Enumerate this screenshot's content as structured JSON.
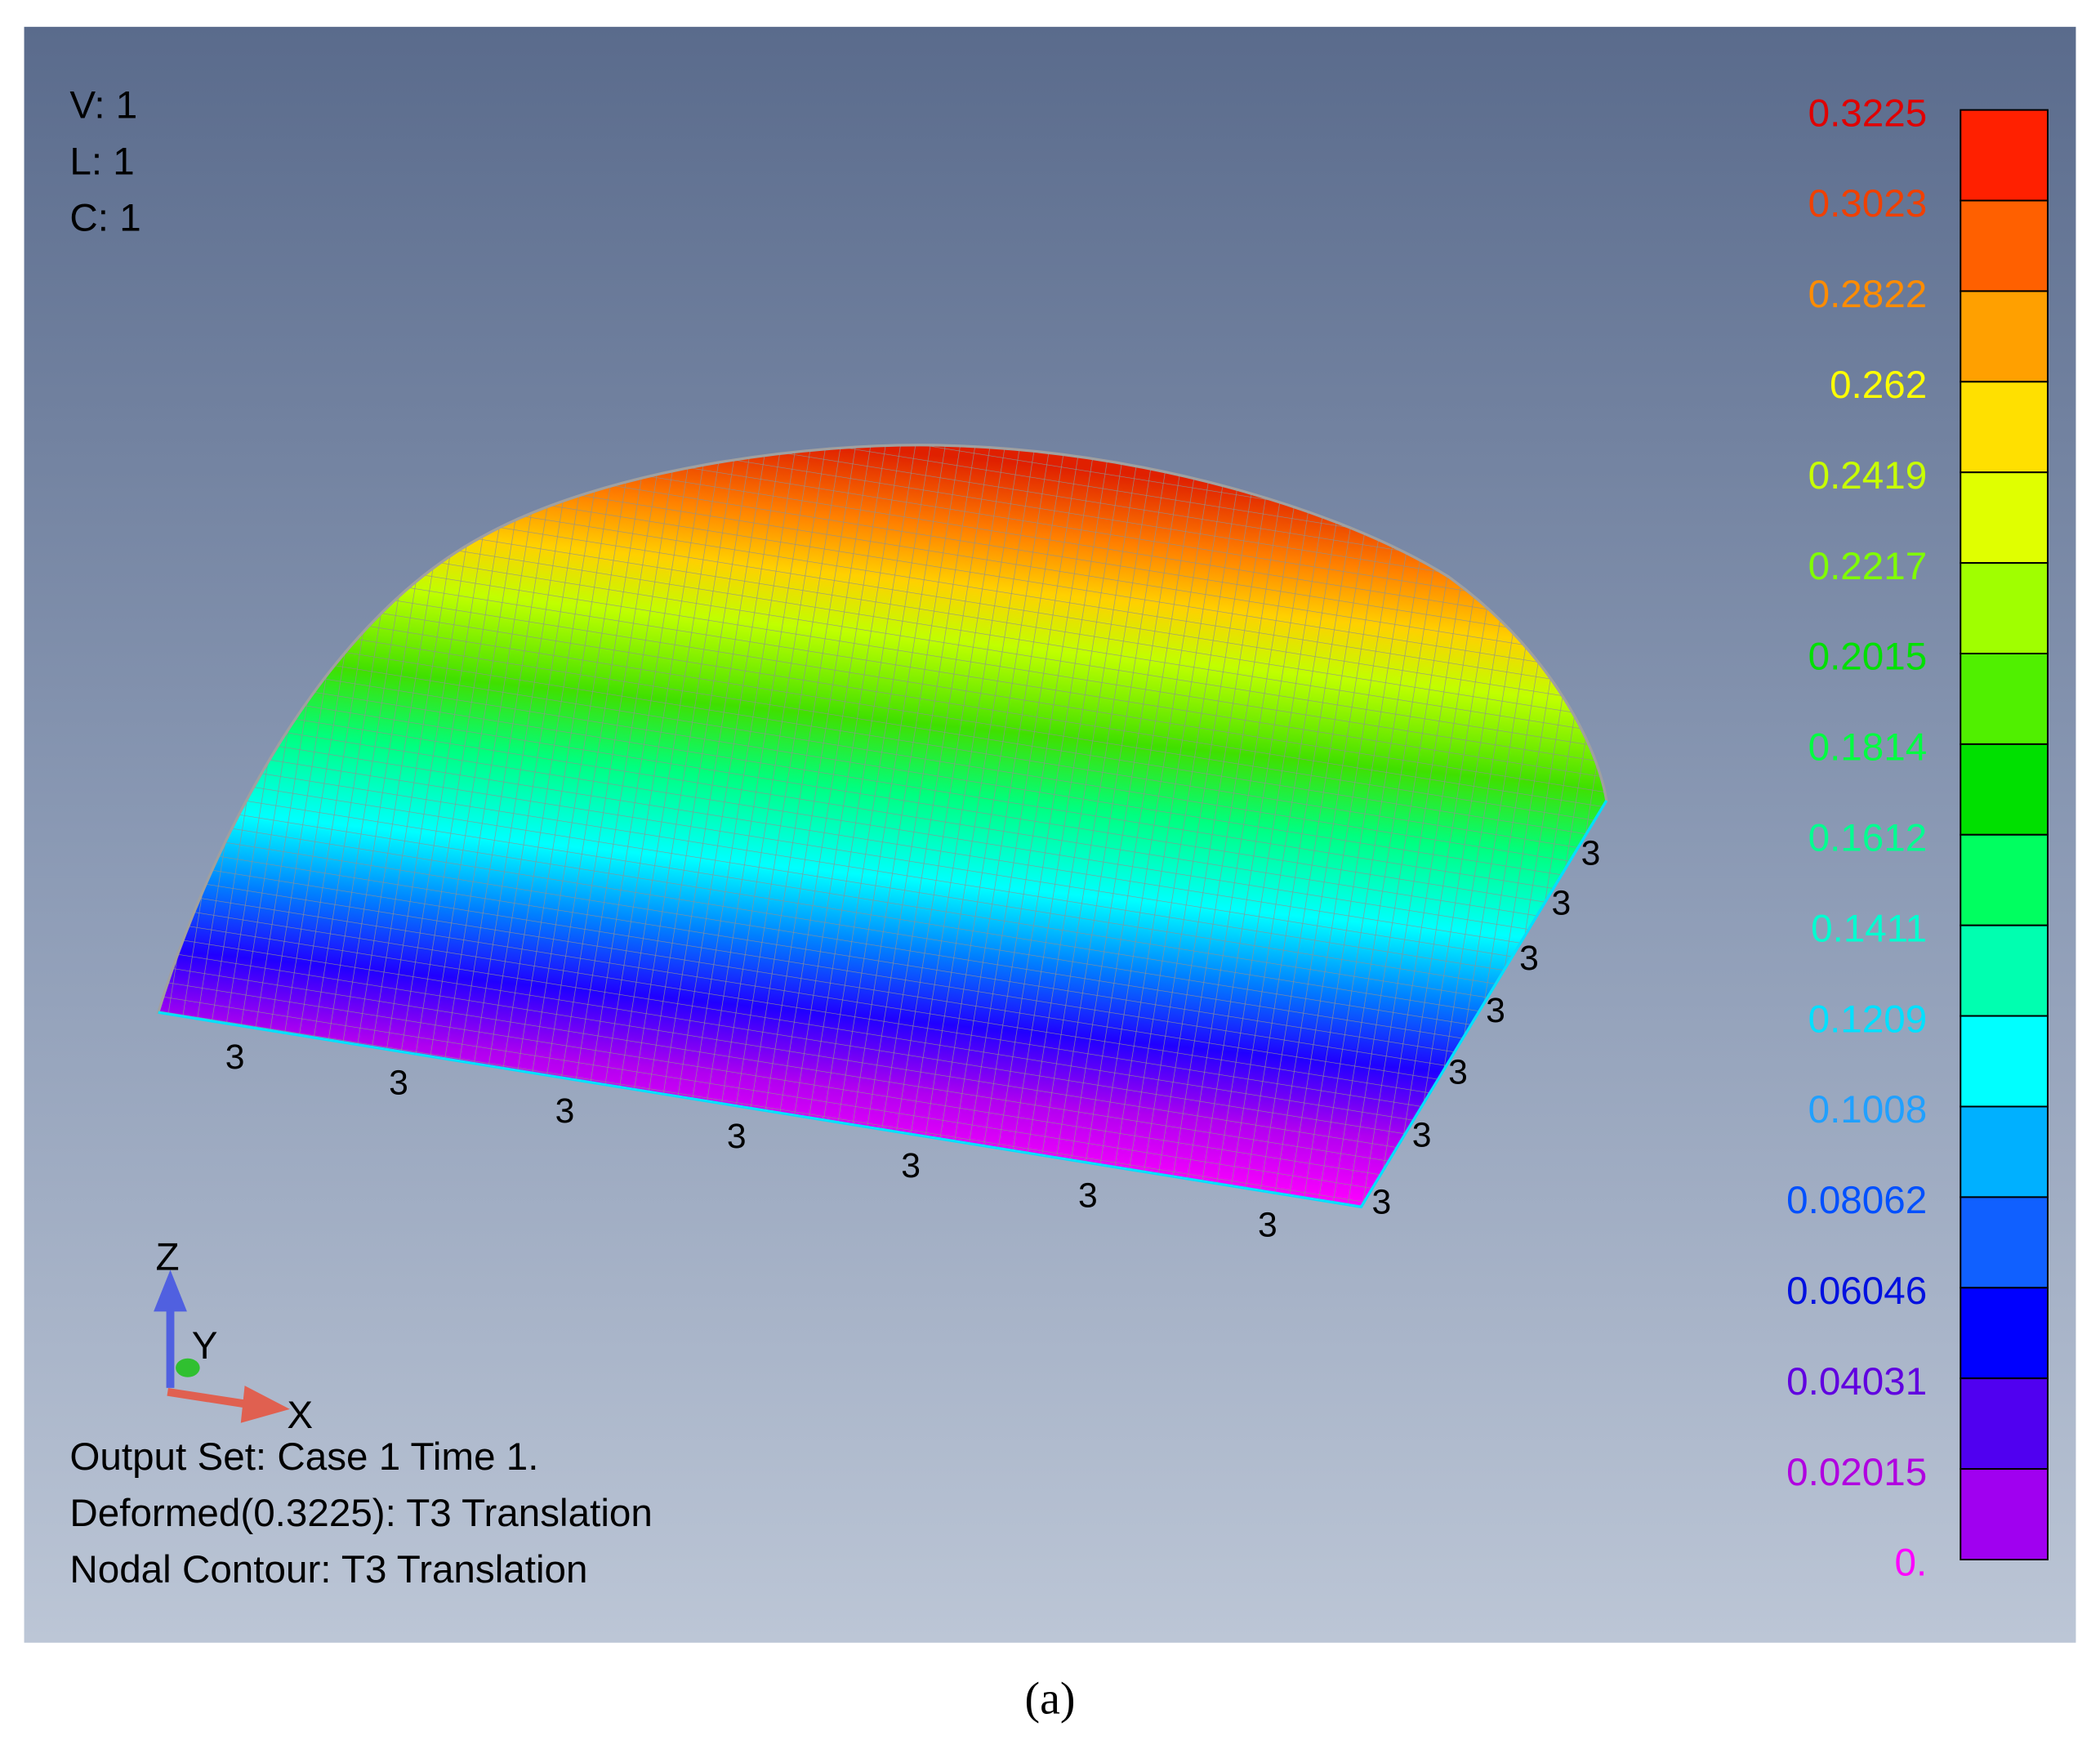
{
  "view_info": [
    "V: 1",
    "L: 1",
    "C: 1"
  ],
  "legend": {
    "labels": [
      "0.3225",
      "0.3023",
      "0.2822",
      "0.262",
      "0.2419",
      "0.2217",
      "0.2015",
      "0.1814",
      "0.1612",
      "0.1411",
      "0.1209",
      "0.1008",
      "0.08062",
      "0.06046",
      "0.04031",
      "0.02015",
      "0."
    ]
  },
  "constraints": [
    "3",
    "3",
    "3",
    "3",
    "3",
    "3",
    "3",
    "3",
    "3",
    "3",
    "3",
    "3",
    "3",
    "3"
  ],
  "triad": {
    "z": "Z",
    "y": "Y",
    "x": "X"
  },
  "footer": [
    "Output Set: Case 1 Time 1.",
    "Deformed(0.3225): T3 Translation",
    "Nodal Contour: T3 Translation"
  ],
  "caption": "(a)"
}
